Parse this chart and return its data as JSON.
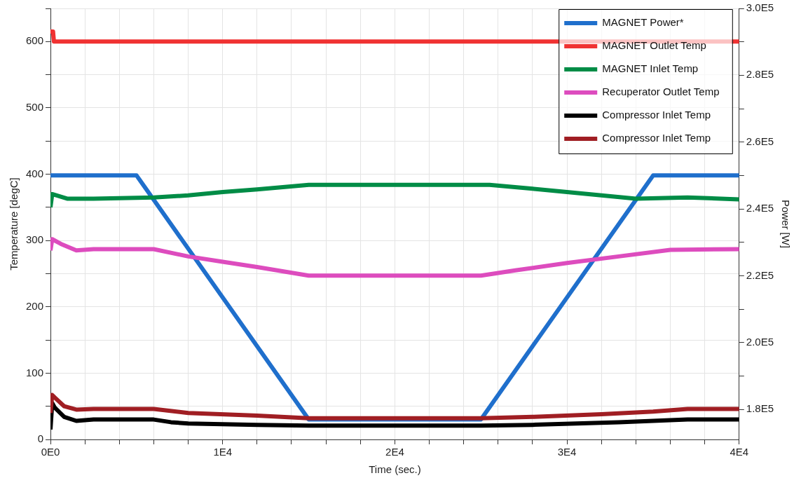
{
  "chart_data": {
    "type": "line",
    "xlabel": "Time (sec.)",
    "ylabel": "Temperature [degC]",
    "y2label": "Power [W]",
    "xlim": [
      0,
      40000
    ],
    "xticks": [
      {
        "value": 0,
        "label": "0E0"
      },
      {
        "value": 2000,
        "label": null
      },
      {
        "value": 4000,
        "label": null
      },
      {
        "value": 6000,
        "label": null
      },
      {
        "value": 8000,
        "label": null
      },
      {
        "value": 10000,
        "label": "1E4"
      },
      {
        "value": 12000,
        "label": null
      },
      {
        "value": 14000,
        "label": null
      },
      {
        "value": 16000,
        "label": null
      },
      {
        "value": 18000,
        "label": null
      },
      {
        "value": 20000,
        "label": "2E4"
      },
      {
        "value": 22000,
        "label": null
      },
      {
        "value": 24000,
        "label": null
      },
      {
        "value": 26000,
        "label": null
      },
      {
        "value": 28000,
        "label": null
      },
      {
        "value": 30000,
        "label": "3E4"
      },
      {
        "value": 32000,
        "label": null
      },
      {
        "value": 34000,
        "label": null
      },
      {
        "value": 36000,
        "label": null
      },
      {
        "value": 38000,
        "label": null
      },
      {
        "value": 40000,
        "label": "4E4"
      }
    ],
    "ylim": [
      0,
      650
    ],
    "yticks": [
      0,
      {
        "value": 50,
        "label": null
      },
      100,
      {
        "value": 150,
        "label": null
      },
      200,
      {
        "value": 250,
        "label": null
      },
      300,
      {
        "value": 350,
        "label": null
      },
      400,
      {
        "value": 450,
        "label": null
      },
      500,
      {
        "value": 550,
        "label": null
      },
      600,
      {
        "value": 650,
        "label": null
      }
    ],
    "y2lim": [
      171000,
      300000
    ],
    "y2ticks": [
      {
        "value": 180000,
        "label": "1.8E5"
      },
      {
        "value": 190000,
        "label": null
      },
      {
        "value": 200000,
        "label": "2.0E5"
      },
      {
        "value": 210000,
        "label": null
      },
      {
        "value": 220000,
        "label": "2.2E5"
      },
      {
        "value": 230000,
        "label": null
      },
      {
        "value": 240000,
        "label": "2.4E5"
      },
      {
        "value": 250000,
        "label": null
      },
      {
        "value": 260000,
        "label": "2.6E5"
      },
      {
        "value": 270000,
        "label": null
      },
      {
        "value": 280000,
        "label": "2.8E5"
      },
      {
        "value": 290000,
        "label": null
      },
      {
        "value": 300000,
        "label": "3.0E5"
      }
    ],
    "grid": true,
    "legend": "top right",
    "marker": "none",
    "line_style": "solid",
    "series": [
      {
        "name": "MAGNET Power*",
        "color": "#1f6fcc",
        "axis": "y2",
        "x": [
          0,
          5000,
          15000,
          25000,
          35000,
          40000
        ],
        "values": [
          250000,
          250000,
          177000,
          177000,
          250000,
          250000
        ]
      },
      {
        "name": "MAGNET Outlet Temp",
        "color": "#f03232",
        "x": [
          0,
          150,
          200,
          40000
        ],
        "values": [
          615,
          615,
          600,
          600
        ]
      },
      {
        "name": "MAGNET Inlet Temp",
        "color": "#008c46",
        "x": [
          0,
          100,
          500,
          1000,
          2500,
          6000,
          8000,
          10000,
          12000,
          15000,
          25500,
          28000,
          30000,
          32000,
          34000,
          37000,
          40000
        ],
        "values": [
          350,
          370,
          367,
          363,
          363,
          365,
          368,
          373,
          377,
          384,
          384,
          378,
          373,
          368,
          363,
          365,
          362
        ]
      },
      {
        "name": "Recuperator Outlet Temp",
        "color": "#dd4cbe",
        "x": [
          0,
          100,
          600,
          1500,
          2500,
          6000,
          8000,
          10000,
          12000,
          15000,
          25000,
          27000,
          30000,
          33000,
          36000,
          40000
        ],
        "values": [
          285,
          302,
          295,
          285,
          287,
          287,
          276,
          268,
          260,
          247,
          247,
          255,
          266,
          276,
          286,
          287
        ]
      },
      {
        "name": "Compressor Inlet Temp",
        "color": "#000000",
        "x": [
          0,
          100,
          250,
          800,
          1500,
          2500,
          6000,
          7000,
          8000,
          12000,
          15000,
          25000,
          28000,
          33000,
          37000,
          40000
        ],
        "values": [
          15,
          55,
          48,
          34,
          28,
          30,
          30,
          26,
          24,
          22,
          21,
          21,
          22,
          26,
          30,
          30
        ]
      },
      {
        "name": "Compressor Inlet Temp",
        "color": "#a01e23",
        "x": [
          0,
          100,
          300,
          800,
          1500,
          2500,
          6000,
          8000,
          12000,
          15000,
          25000,
          28000,
          32000,
          35000,
          37000,
          40000
        ],
        "values": [
          40,
          67,
          62,
          50,
          45,
          46,
          46,
          40,
          36,
          32,
          32,
          34,
          38,
          42,
          46,
          46
        ]
      }
    ]
  }
}
